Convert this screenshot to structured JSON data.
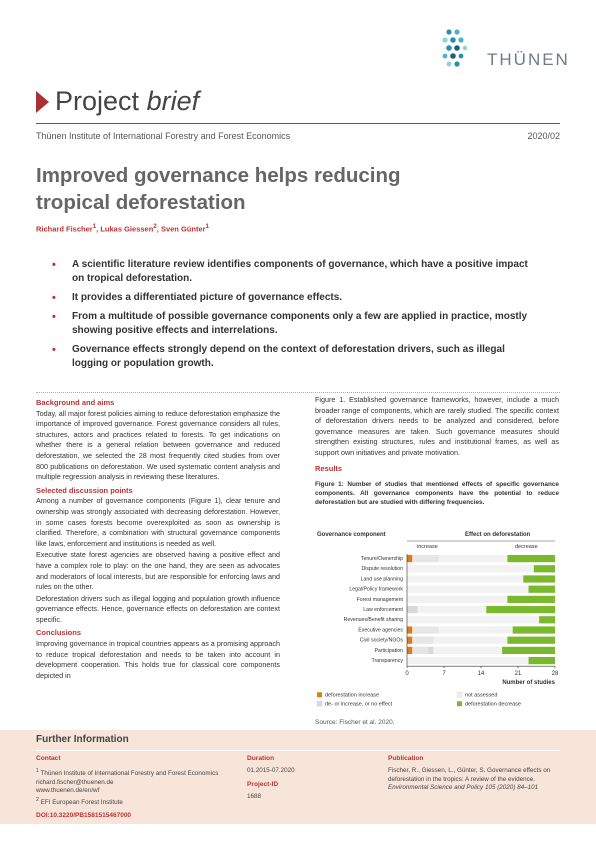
{
  "logo": {
    "text": "THÜNEN",
    "dot_colors": [
      "#2a8fb0",
      "#4ab3c7",
      "#8fd0dc",
      "#1e5f80"
    ]
  },
  "brand": {
    "project": "Project",
    "brief": "brief"
  },
  "header": {
    "institute": "Thünen Institute of International Forestry and Forest Economics",
    "issue": "2020/02"
  },
  "title": {
    "line1": "Improved governance helps reducing",
    "line2": "tropical deforestation"
  },
  "authors": {
    "a1": "Richard Fischer",
    "a1_sup": "1",
    "a2": "Lukas Giessen",
    "a2_sup": "2",
    "a3": "Sven Günter",
    "a3_sup": "1"
  },
  "key_points": [
    "A scientific literature review identifies components of governance, which have a positive impact on tropical deforestation.",
    "It provides a differentiated picture of governance effects.",
    "From a multitude of possible governance components only a few are applied in practice, mostly showing positive effects and interrelations.",
    "Governance effects strongly depend on the context of deforestation drivers, such as illegal logging or population growth."
  ],
  "sections": {
    "background_heading": "Background and aims",
    "background_text": "Today, all major forest policies aiming to reduce deforestation emphasize the importance of improved governance. Forest governance considers all rules, structures, actors and practices related to forests. To get indications on whether there is a general relation between governance and reduced deforestation, we selected the 28 most frequently cited studies from over 800 publications on deforestation. We used systematic content analysis and multiple regression analysis in reviewing these literatures.",
    "discussion_heading": "Selected discussion points",
    "discussion_p1": "Among a number of governance components (Figure 1), clear tenure and ownership was strongly associated with decreasing deforestation. However, in some cases forests become overexploited as soon as ownership is clarified. Therefore, a combination with structural governance components like laws, enforcement and institutions is needed as well.",
    "discussion_p2": "Executive state forest agencies are observed having a positive effect and have a complex role to play: on the one hand, they are seen as advocates and moderators of local interests, but are responsible for enforcing laws and rules on the other.",
    "discussion_p3": "Deforestation drivers such as illegal logging and population growth influence governance effects. Hence, governance effects on deforestation are context specific.",
    "conclusions_heading": "Conclusions",
    "conclusions_text": "Improving governance in tropical countries appears as a promising approach to reduce tropical deforestation and needs to be taken into account in development cooperation. This holds true for classical core components depicted in",
    "right_p1": "Figure 1. Established governance frameworks, however, include a much broader range of components, which are rarely studied. The specific context of deforestation drivers needs to be analyzed and considered, before governance measures are taken. Such governance measures should strengthen existing structures, rules and institutional frames, as well as support own initiatives and private motivation.",
    "results_heading": "Results",
    "figure_caption": "Figure 1: Number of studies that mentioned effects of specific governance components. All governance components have the potential to reduce deforestation but are studied with differing frequencies."
  },
  "chart_data": {
    "type": "bar",
    "orientation": "horizontal",
    "stacked": true,
    "title": "",
    "column_header_left": "Governance component",
    "column_header_right": "Effect on deforestation",
    "increase_label": "increase",
    "decrease_label": "decrease",
    "xlabel": "Number of studies",
    "xlim": [
      0,
      28
    ],
    "xticks": [
      0,
      7,
      14,
      21,
      28
    ],
    "grid": false,
    "legend_position": "bottom",
    "categories": [
      "Tenure/Ownership",
      "Dispute resolution",
      "Land use planning",
      "Legal/Policy framework",
      "Forest management",
      "Law enforcement",
      "Revenues/Benefit sharing",
      "Executive agencies",
      "Civil society/NGOs",
      "Participation",
      "Transparency"
    ],
    "series": [
      {
        "name": "deforestation increase",
        "color": "#e07b10",
        "values": [
          1,
          0,
          0,
          0,
          0,
          0,
          0,
          1,
          1,
          1,
          0
        ]
      },
      {
        "name": "not assessed",
        "color": "#f0f0f0",
        "values": [
          5,
          0,
          0,
          0,
          0,
          0,
          0,
          5,
          4,
          3,
          0
        ]
      },
      {
        "name": "de- or increase, or no effect",
        "color": "#d9d9d9",
        "values": [
          0,
          0,
          0,
          0,
          0,
          2,
          0,
          0,
          0,
          1,
          0
        ]
      },
      {
        "name": "deforestation decrease",
        "color": "#7ab82d",
        "values": [
          9,
          4,
          6,
          5,
          9,
          13,
          3,
          8,
          9,
          10,
          5
        ]
      }
    ],
    "source": "Source: Fischer et al. 2020."
  },
  "further_info": {
    "title": "Further Information",
    "contact_heading": "Contact",
    "contact_line1": "Thünen Institute of International Forestry and Forest Economics",
    "contact_line1_sup": "1",
    "contact_line2": "richard.fischer@thuenen.de",
    "contact_line3": "www.thuenen.de/en/wf",
    "contact_line4": "EFI European Forest Institute",
    "contact_line4_sup": "2",
    "duration_heading": "Duration",
    "duration_value": "01.2015-07.2020",
    "project_id_heading": "Project-ID",
    "project_id_value": "1688",
    "publication_heading": "Publication",
    "publication_text": "Fischer, R., Giessen, L., Günter, S. Governance effects on deforestation in the tropics: A review of the evidence.",
    "publication_journal": "Environmental Science and Policy 105 (2020) 84–101",
    "doi": "DOI:10.3220/PB1581515467000"
  }
}
